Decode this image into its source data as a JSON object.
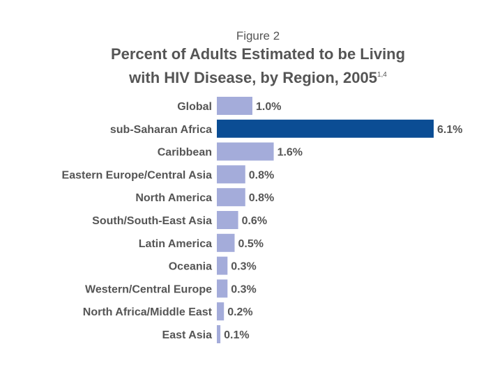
{
  "figure_label": "Figure 2",
  "title_line1": "Percent of Adults Estimated to be Living",
  "title_line2": "with HIV Disease, by Region, 2005",
  "title_superscript": "1,4",
  "colors": {
    "bar": "#a4acda",
    "highlight": "#0b4d94",
    "text": "#555555"
  },
  "chart_data": {
    "type": "bar",
    "orientation": "horizontal",
    "title": "Percent of Adults Estimated to be Living with HIV Disease, by Region, 2005",
    "categories": [
      "Global",
      "sub-Saharan Africa",
      "Caribbean",
      "Eastern Europe/Central Asia",
      "North America",
      "South/South-East Asia",
      "Latin America",
      "Oceania",
      "Western/Central Europe",
      "North Africa/Middle East",
      "East Asia"
    ],
    "values": [
      1.0,
      6.1,
      1.6,
      0.8,
      0.8,
      0.6,
      0.5,
      0.3,
      0.3,
      0.2,
      0.1
    ],
    "value_labels": [
      "1.0%",
      "6.1%",
      "1.6%",
      "0.8%",
      "0.8%",
      "0.6%",
      "0.5%",
      "0.3%",
      "0.3%",
      "0.2%",
      "0.1%"
    ],
    "highlight_index": 1,
    "xlabel": "",
    "ylabel": "",
    "xlim": [
      0,
      6.1
    ],
    "grid": false,
    "legend": "none"
  }
}
